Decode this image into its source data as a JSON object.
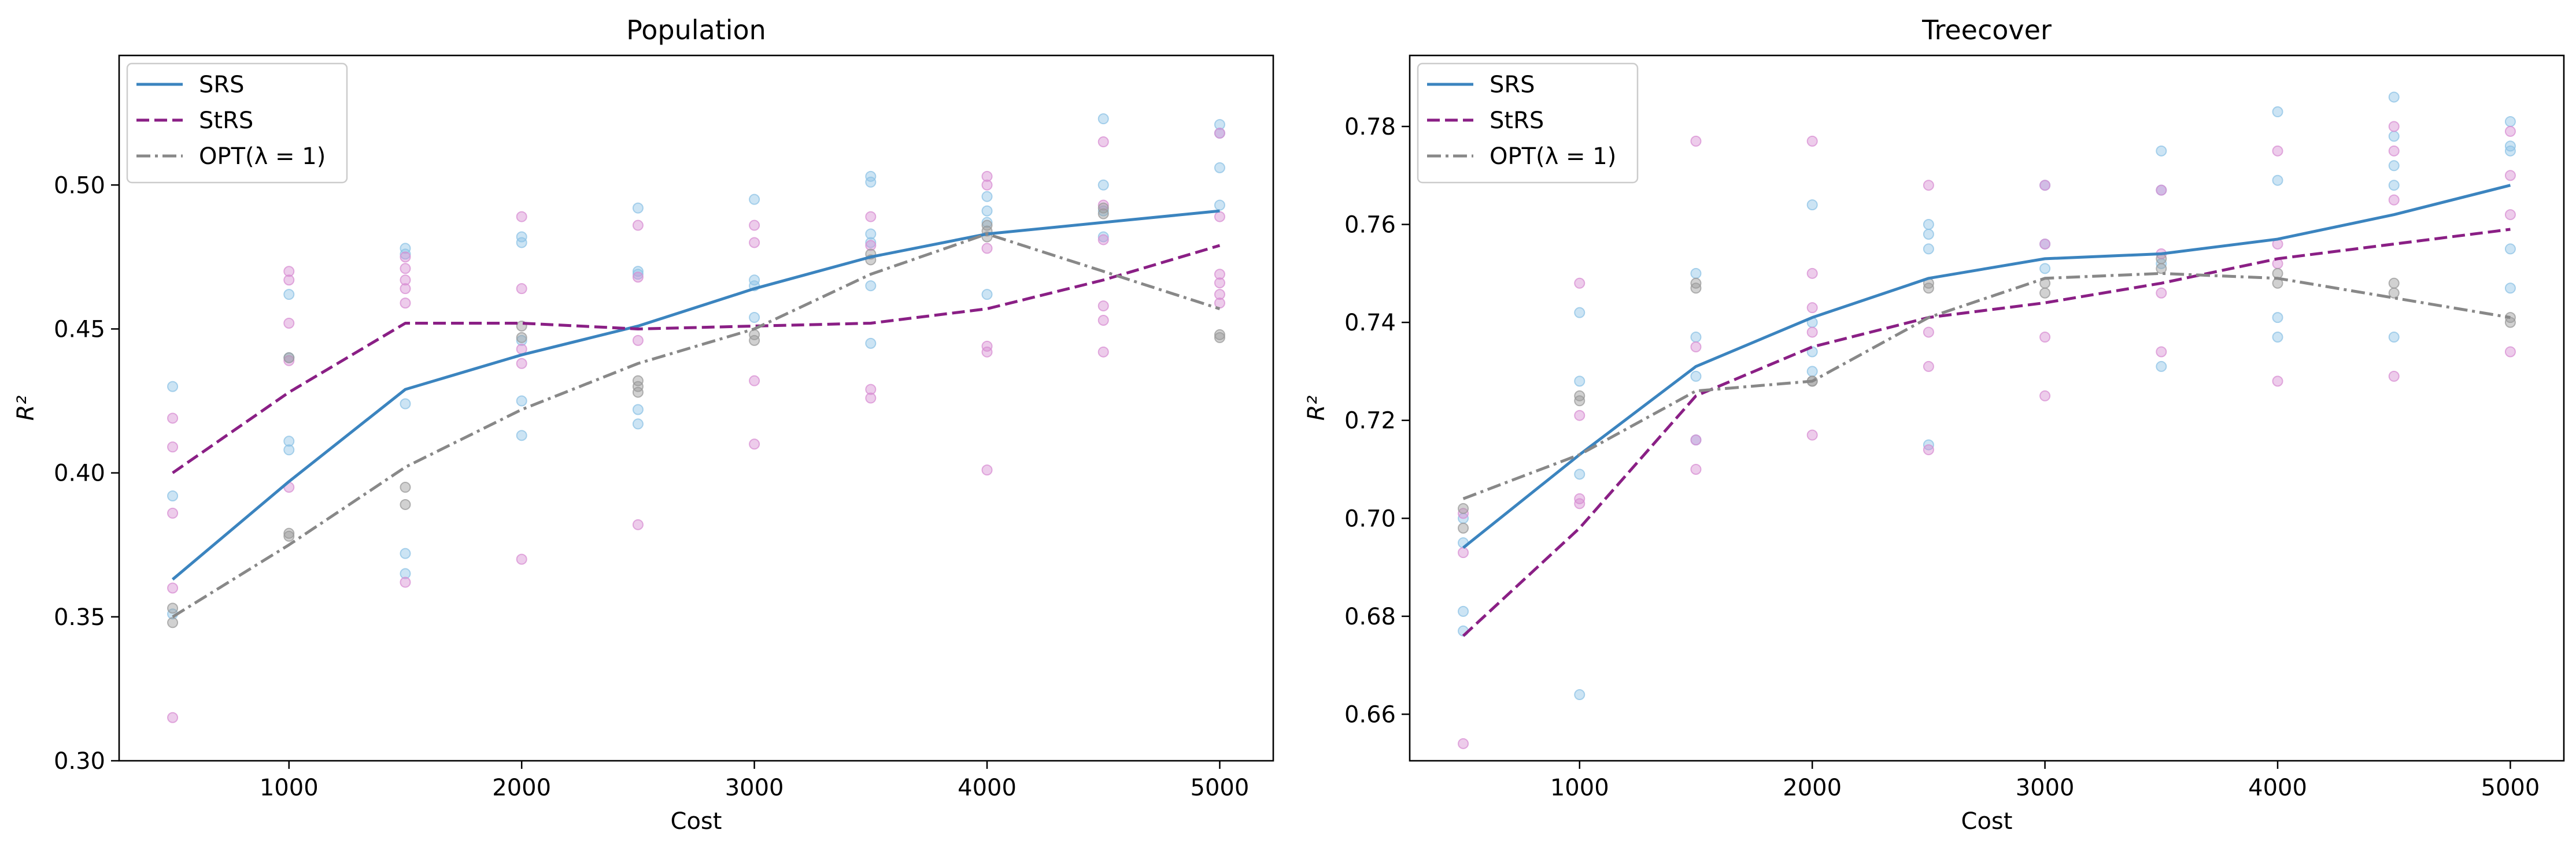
{
  "chart_data": [
    {
      "type": "line",
      "title": "Population",
      "xlabel": "Cost",
      "ylabel": "R²",
      "xlim": [
        270,
        5230
      ],
      "ylim": [
        0.3,
        0.545
      ],
      "xticks": [
        1000,
        2000,
        3000,
        4000,
        5000
      ],
      "yticks": [
        0.3,
        0.35,
        0.4,
        0.45,
        0.5
      ],
      "ytick_decimals": 2,
      "legend_position": "top-left",
      "x": [
        500,
        1000,
        1500,
        2000,
        2500,
        3000,
        3500,
        4000,
        4500,
        5000
      ],
      "series": [
        {
          "name": "SRS",
          "color": "#3b84bf",
          "dash": "solid",
          "values": [
            0.363,
            0.397,
            0.429,
            0.441,
            0.451,
            0.464,
            0.475,
            0.483,
            0.487,
            0.491
          ]
        },
        {
          "name": "StRS",
          "color": "#8a1f85",
          "dash": "dashed",
          "values": [
            0.4,
            0.428,
            0.452,
            0.452,
            0.45,
            0.451,
            0.452,
            0.457,
            0.467,
            0.479
          ]
        },
        {
          "name": "OPT(λ = 1)",
          "color": "#888888",
          "dash": "dashdot",
          "values": [
            0.35,
            0.375,
            0.402,
            0.422,
            0.438,
            0.45,
            0.469,
            0.483,
            0.47,
            0.457
          ]
        }
      ],
      "scatter": [
        {
          "series": "SRS",
          "color": "#8ec3e6",
          "points": [
            [
              500,
              0.43
            ],
            [
              500,
              0.392
            ],
            [
              500,
              0.351
            ],
            [
              1000,
              0.411
            ],
            [
              1000,
              0.408
            ],
            [
              1000,
              0.462
            ],
            [
              1000,
              0.44
            ],
            [
              1500,
              0.478
            ],
            [
              1500,
              0.476
            ],
            [
              1500,
              0.424
            ],
            [
              1500,
              0.372
            ],
            [
              1500,
              0.365
            ],
            [
              2000,
              0.482
            ],
            [
              2000,
              0.48
            ],
            [
              2000,
              0.446
            ],
            [
              2000,
              0.425
            ],
            [
              2000,
              0.413
            ],
            [
              2500,
              0.492
            ],
            [
              2500,
              0.47
            ],
            [
              2500,
              0.469
            ],
            [
              2500,
              0.422
            ],
            [
              2500,
              0.417
            ],
            [
              3000,
              0.495
            ],
            [
              3000,
              0.467
            ],
            [
              3000,
              0.465
            ],
            [
              3000,
              0.454
            ],
            [
              3500,
              0.503
            ],
            [
              3500,
              0.501
            ],
            [
              3500,
              0.483
            ],
            [
              3500,
              0.48
            ],
            [
              3500,
              0.465
            ],
            [
              3500,
              0.445
            ],
            [
              4000,
              0.496
            ],
            [
              4000,
              0.491
            ],
            [
              4000,
              0.487
            ],
            [
              4000,
              0.462
            ],
            [
              4500,
              0.523
            ],
            [
              4500,
              0.5
            ],
            [
              4500,
              0.491
            ],
            [
              4500,
              0.482
            ],
            [
              5000,
              0.521
            ],
            [
              5000,
              0.518
            ],
            [
              5000,
              0.506
            ],
            [
              5000,
              0.493
            ]
          ]
        },
        {
          "series": "StRS",
          "color": "#d88fd3",
          "points": [
            [
              500,
              0.419
            ],
            [
              500,
              0.409
            ],
            [
              500,
              0.386
            ],
            [
              500,
              0.36
            ],
            [
              500,
              0.315
            ],
            [
              1000,
              0.47
            ],
            [
              1000,
              0.467
            ],
            [
              1000,
              0.452
            ],
            [
              1000,
              0.439
            ],
            [
              1000,
              0.395
            ],
            [
              1500,
              0.475
            ],
            [
              1500,
              0.471
            ],
            [
              1500,
              0.467
            ],
            [
              1500,
              0.464
            ],
            [
              1500,
              0.459
            ],
            [
              1500,
              0.362
            ],
            [
              2000,
              0.489
            ],
            [
              2000,
              0.464
            ],
            [
              2000,
              0.443
            ],
            [
              2000,
              0.438
            ],
            [
              2000,
              0.37
            ],
            [
              2500,
              0.486
            ],
            [
              2500,
              0.468
            ],
            [
              2500,
              0.446
            ],
            [
              2500,
              0.382
            ],
            [
              3000,
              0.486
            ],
            [
              3000,
              0.48
            ],
            [
              3000,
              0.432
            ],
            [
              3000,
              0.41
            ],
            [
              3500,
              0.489
            ],
            [
              3500,
              0.479
            ],
            [
              3500,
              0.429
            ],
            [
              3500,
              0.426
            ],
            [
              4000,
              0.503
            ],
            [
              4000,
              0.5
            ],
            [
              4000,
              0.478
            ],
            [
              4000,
              0.444
            ],
            [
              4000,
              0.442
            ],
            [
              4000,
              0.401
            ],
            [
              4500,
              0.515
            ],
            [
              4500,
              0.493
            ],
            [
              4500,
              0.481
            ],
            [
              4500,
              0.458
            ],
            [
              4500,
              0.453
            ],
            [
              4500,
              0.442
            ],
            [
              5000,
              0.518
            ],
            [
              5000,
              0.489
            ],
            [
              5000,
              0.469
            ],
            [
              5000,
              0.466
            ],
            [
              5000,
              0.462
            ],
            [
              5000,
              0.459
            ]
          ]
        },
        {
          "series": "OPT(λ = 1)",
          "color": "#9a9a9a",
          "points": [
            [
              500,
              0.353
            ],
            [
              500,
              0.348
            ],
            [
              1000,
              0.379
            ],
            [
              1000,
              0.378
            ],
            [
              1000,
              0.44
            ],
            [
              1500,
              0.395
            ],
            [
              1500,
              0.389
            ],
            [
              2000,
              0.447
            ],
            [
              2000,
              0.451
            ],
            [
              2500,
              0.432
            ],
            [
              2500,
              0.43
            ],
            [
              2500,
              0.428
            ],
            [
              3000,
              0.448
            ],
            [
              3000,
              0.446
            ],
            [
              3500,
              0.476
            ],
            [
              3500,
              0.474
            ],
            [
              4000,
              0.486
            ],
            [
              4000,
              0.484
            ],
            [
              4000,
              0.482
            ],
            [
              4500,
              0.492
            ],
            [
              4500,
              0.49
            ],
            [
              5000,
              0.448
            ],
            [
              5000,
              0.447
            ]
          ]
        }
      ]
    },
    {
      "type": "line",
      "title": "Treecover",
      "xlabel": "Cost",
      "ylabel": "R²",
      "xlim": [
        270,
        5230
      ],
      "ylim": [
        0.6505,
        0.7945
      ],
      "xticks": [
        1000,
        2000,
        3000,
        4000,
        5000
      ],
      "yticks": [
        0.66,
        0.68,
        0.7,
        0.72,
        0.74,
        0.76,
        0.78
      ],
      "ytick_decimals": 2,
      "legend_position": "top-left",
      "x": [
        500,
        1000,
        1500,
        2000,
        2500,
        3000,
        3500,
        4000,
        4500,
        5000
      ],
      "series": [
        {
          "name": "SRS",
          "color": "#3b84bf",
          "dash": "solid",
          "values": [
            0.694,
            0.713,
            0.731,
            0.741,
            0.749,
            0.753,
            0.754,
            0.757,
            0.762,
            0.768
          ]
        },
        {
          "name": "StRS",
          "color": "#8a1f85",
          "dash": "dashed",
          "values": [
            0.676,
            0.698,
            0.725,
            0.735,
            0.741,
            0.744,
            0.748,
            0.753,
            0.756,
            0.759
          ]
        },
        {
          "name": "OPT(λ = 1)",
          "color": "#888888",
          "dash": "dashdot",
          "values": [
            0.704,
            0.713,
            0.726,
            0.728,
            0.741,
            0.749,
            0.75,
            0.749,
            0.745,
            0.741
          ]
        }
      ],
      "scatter": [
        {
          "series": "SRS",
          "color": "#8ec3e6",
          "points": [
            [
              500,
              0.7
            ],
            [
              500,
              0.695
            ],
            [
              500,
              0.681
            ],
            [
              500,
              0.677
            ],
            [
              1000,
              0.742
            ],
            [
              1000,
              0.728
            ],
            [
              1000,
              0.709
            ],
            [
              1000,
              0.664
            ],
            [
              1500,
              0.75
            ],
            [
              1500,
              0.737
            ],
            [
              1500,
              0.729
            ],
            [
              1500,
              0.716
            ],
            [
              2000,
              0.764
            ],
            [
              2000,
              0.74
            ],
            [
              2000,
              0.734
            ],
            [
              2000,
              0.73
            ],
            [
              2500,
              0.76
            ],
            [
              2500,
              0.758
            ],
            [
              2500,
              0.755
            ],
            [
              2500,
              0.715
            ],
            [
              3000,
              0.768
            ],
            [
              3000,
              0.756
            ],
            [
              3000,
              0.751
            ],
            [
              3500,
              0.775
            ],
            [
              3500,
              0.767
            ],
            [
              3500,
              0.752
            ],
            [
              3500,
              0.731
            ],
            [
              4000,
              0.783
            ],
            [
              4000,
              0.769
            ],
            [
              4000,
              0.741
            ],
            [
              4000,
              0.737
            ],
            [
              4500,
              0.786
            ],
            [
              4500,
              0.778
            ],
            [
              4500,
              0.772
            ],
            [
              4500,
              0.768
            ],
            [
              4500,
              0.737
            ],
            [
              5000,
              0.781
            ],
            [
              5000,
              0.776
            ],
            [
              5000,
              0.775
            ],
            [
              5000,
              0.755
            ],
            [
              5000,
              0.747
            ]
          ]
        },
        {
          "series": "StRS",
          "color": "#d88fd3",
          "points": [
            [
              500,
              0.701
            ],
            [
              500,
              0.693
            ],
            [
              500,
              0.654
            ],
            [
              1000,
              0.748
            ],
            [
              1000,
              0.721
            ],
            [
              1000,
              0.704
            ],
            [
              1000,
              0.703
            ],
            [
              1500,
              0.777
            ],
            [
              1500,
              0.735
            ],
            [
              1500,
              0.716
            ],
            [
              1500,
              0.71
            ],
            [
              2000,
              0.777
            ],
            [
              2000,
              0.75
            ],
            [
              2000,
              0.743
            ],
            [
              2000,
              0.738
            ],
            [
              2000,
              0.717
            ],
            [
              2500,
              0.768
            ],
            [
              2500,
              0.738
            ],
            [
              2500,
              0.731
            ],
            [
              2500,
              0.714
            ],
            [
              3000,
              0.768
            ],
            [
              3000,
              0.756
            ],
            [
              3000,
              0.737
            ],
            [
              3000,
              0.725
            ],
            [
              3500,
              0.767
            ],
            [
              3500,
              0.754
            ],
            [
              3500,
              0.746
            ],
            [
              3500,
              0.734
            ],
            [
              4000,
              0.775
            ],
            [
              4000,
              0.756
            ],
            [
              4000,
              0.752
            ],
            [
              4000,
              0.728
            ],
            [
              4500,
              0.78
            ],
            [
              4500,
              0.775
            ],
            [
              4500,
              0.765
            ],
            [
              4500,
              0.729
            ],
            [
              5000,
              0.779
            ],
            [
              5000,
              0.77
            ],
            [
              5000,
              0.762
            ],
            [
              5000,
              0.734
            ]
          ]
        },
        {
          "series": "OPT(λ = 1)",
          "color": "#9a9a9a",
          "points": [
            [
              500,
              0.702
            ],
            [
              500,
              0.698
            ],
            [
              1000,
              0.725
            ],
            [
              1000,
              0.724
            ],
            [
              1500,
              0.748
            ],
            [
              1500,
              0.747
            ],
            [
              2000,
              0.728
            ],
            [
              2000,
              0.728
            ],
            [
              2500,
              0.748
            ],
            [
              2500,
              0.747
            ],
            [
              3000,
              0.748
            ],
            [
              3000,
              0.746
            ],
            [
              3500,
              0.753
            ],
            [
              3500,
              0.751
            ],
            [
              4000,
              0.75
            ],
            [
              4000,
              0.748
            ],
            [
              4500,
              0.748
            ],
            [
              4500,
              0.746
            ],
            [
              5000,
              0.741
            ],
            [
              5000,
              0.74
            ]
          ]
        }
      ]
    }
  ]
}
